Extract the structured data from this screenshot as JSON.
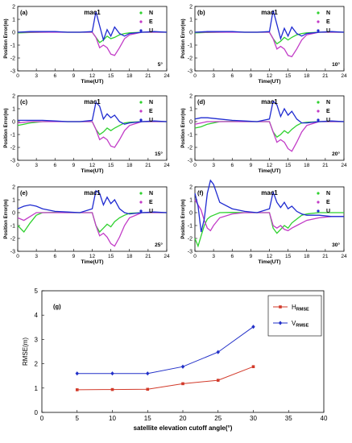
{
  "colors": {
    "N": "#2fd12f",
    "E": "#c23cc7",
    "U": "#1f2bd1",
    "H_RMSE": "#d23a2a",
    "V_RMSE": "#2230c8"
  },
  "chart_data": [
    {
      "type": "line",
      "panel_label": "(a)",
      "title": "mac1",
      "cutoff_label": "5°",
      "xlabel": "Time(UT)",
      "ylabel": "Position Error(m)",
      "xlim": [
        0,
        24
      ],
      "ylim": [
        -3,
        2
      ],
      "xticks": [
        0,
        3,
        6,
        9,
        12,
        15,
        18,
        21,
        24
      ],
      "yticks": [
        -3,
        -2,
        -1,
        0,
        1,
        2
      ],
      "legend": [
        "N",
        "E",
        "U"
      ],
      "series": [
        {
          "name": "N",
          "x": [
            0,
            2,
            4,
            6,
            8,
            10,
            12,
            12.6,
            13.2,
            13.8,
            14.4,
            15,
            15.6,
            16.4,
            17.2,
            18,
            20,
            22,
            24
          ],
          "y": [
            -0.05,
            -0.02,
            0,
            0.02,
            0,
            0,
            0,
            -0.4,
            -0.8,
            -0.6,
            -0.3,
            -0.5,
            -0.4,
            -0.2,
            -0.1,
            -0.05,
            0,
            0,
            0
          ]
        },
        {
          "name": "E",
          "x": [
            0,
            2,
            4,
            6,
            8,
            10,
            12,
            12.6,
            13.2,
            13.8,
            14.4,
            15,
            15.6,
            16.4,
            17.2,
            18,
            20,
            22,
            24
          ],
          "y": [
            0,
            0,
            0,
            0,
            0,
            0,
            0,
            -0.4,
            -1.2,
            -1.0,
            -1.2,
            -1.7,
            -1.8,
            -1.2,
            -0.5,
            -0.2,
            0,
            0,
            0
          ]
        },
        {
          "name": "U",
          "x": [
            0,
            2,
            4,
            6,
            8,
            10,
            12,
            12.6,
            13.2,
            13.8,
            14.4,
            15,
            15.6,
            16.4,
            17.2,
            18,
            20,
            22,
            24
          ],
          "y": [
            0,
            0.05,
            0.05,
            0.05,
            0,
            0,
            0.05,
            1.6,
            0.5,
            -0.6,
            0.2,
            -0.3,
            0.4,
            -0.1,
            -0.3,
            -0.1,
            0,
            0.05,
            0
          ]
        }
      ]
    },
    {
      "type": "line",
      "panel_label": "(b)",
      "title": "mac1",
      "cutoff_label": "10°",
      "xlabel": "Time(UT)",
      "ylabel": "Position Error(m)",
      "xlim": [
        0,
        24
      ],
      "ylim": [
        -3,
        2
      ],
      "xticks": [
        0,
        3,
        6,
        9,
        12,
        15,
        18,
        21,
        24
      ],
      "yticks": [
        -3,
        -2,
        -1,
        0,
        1,
        2
      ],
      "legend": [
        "N",
        "E",
        "U"
      ],
      "series": [
        {
          "name": "N",
          "x": [
            0,
            2,
            4,
            6,
            8,
            10,
            12,
            12.6,
            13.2,
            13.8,
            14.4,
            15,
            15.6,
            16.4,
            17.2,
            18,
            20,
            22,
            24
          ],
          "y": [
            -0.05,
            -0.02,
            0,
            0.02,
            0,
            0,
            0,
            -0.5,
            -0.9,
            -0.7,
            -0.4,
            -0.6,
            -0.4,
            -0.2,
            -0.1,
            -0.05,
            0,
            0,
            0
          ]
        },
        {
          "name": "E",
          "x": [
            0,
            2,
            4,
            6,
            8,
            10,
            12,
            12.6,
            13.2,
            13.8,
            14.4,
            15,
            15.6,
            16.4,
            17.2,
            18,
            20,
            22,
            24
          ],
          "y": [
            0,
            0,
            0,
            0,
            0,
            0,
            0,
            -0.5,
            -1.3,
            -1.1,
            -1.3,
            -1.8,
            -1.9,
            -1.3,
            -0.6,
            -0.2,
            0,
            0,
            0
          ]
        },
        {
          "name": "U",
          "x": [
            0,
            2,
            4,
            6,
            8,
            10,
            12,
            12.6,
            13.2,
            13.8,
            14.4,
            15,
            15.6,
            16.4,
            17.2,
            18,
            20,
            22,
            24
          ],
          "y": [
            0,
            0.05,
            0.05,
            0.05,
            0,
            0,
            0.05,
            1.7,
            0.6,
            -0.5,
            0.3,
            -0.3,
            0.4,
            -0.1,
            -0.3,
            -0.1,
            0,
            0.05,
            0
          ]
        }
      ]
    },
    {
      "type": "line",
      "panel_label": "(c)",
      "title": "mac1",
      "cutoff_label": "15°",
      "xlabel": "Time(UT)",
      "ylabel": "Position Error(m)",
      "xlim": [
        0,
        24
      ],
      "ylim": [
        -3,
        2
      ],
      "xticks": [
        0,
        3,
        6,
        9,
        12,
        15,
        18,
        21,
        24
      ],
      "yticks": [
        -3,
        -2,
        -1,
        0,
        1,
        2
      ],
      "legend": [
        "N",
        "E",
        "U"
      ],
      "series": [
        {
          "name": "N",
          "x": [
            0,
            1,
            2,
            4,
            6,
            8,
            10,
            12,
            12.6,
            13.2,
            13.8,
            14.4,
            15,
            15.6,
            16.4,
            17.2,
            18,
            20,
            22,
            24
          ],
          "y": [
            -0.3,
            -0.2,
            -0.1,
            0,
            0.02,
            0,
            0,
            0,
            -0.6,
            -1.0,
            -0.8,
            -0.5,
            -0.7,
            -0.5,
            -0.3,
            -0.1,
            -0.05,
            0,
            0,
            0
          ]
        },
        {
          "name": "E",
          "x": [
            0,
            1,
            2,
            4,
            6,
            8,
            10,
            12,
            12.6,
            13.2,
            13.8,
            14.4,
            15,
            15.6,
            16.4,
            17.2,
            18,
            20,
            22,
            24
          ],
          "y": [
            -0.1,
            -0.05,
            0,
            0,
            0,
            0,
            0,
            0,
            -0.6,
            -1.4,
            -1.2,
            -1.4,
            -1.9,
            -2.0,
            -1.4,
            -0.7,
            -0.3,
            0,
            0,
            0
          ]
        },
        {
          "name": "U",
          "x": [
            0,
            1,
            2,
            4,
            6,
            8,
            10,
            12,
            12.6,
            13.2,
            13.8,
            14.4,
            15,
            15.6,
            16.4,
            17.2,
            18,
            20,
            22,
            24
          ],
          "y": [
            0.1,
            0.1,
            0.1,
            0.1,
            0.05,
            0,
            0,
            0.1,
            1.5,
            1.2,
            0.2,
            0.6,
            0.3,
            0.5,
            0.0,
            -0.2,
            -0.1,
            0,
            0.05,
            0
          ]
        }
      ]
    },
    {
      "type": "line",
      "panel_label": "(d)",
      "title": "mac1",
      "cutoff_label": "20°",
      "xlabel": "Time(UT)",
      "ylabel": "Position Error(m)",
      "xlim": [
        0,
        24
      ],
      "ylim": [
        -3,
        2
      ],
      "xticks": [
        0,
        3,
        6,
        9,
        12,
        15,
        18,
        21,
        24
      ],
      "yticks": [
        -3,
        -2,
        -1,
        0,
        1,
        2
      ],
      "legend": [
        "N",
        "E",
        "U"
      ],
      "series": [
        {
          "name": "N",
          "x": [
            0,
            1,
            2,
            4,
            6,
            8,
            10,
            12,
            12.6,
            13.2,
            13.8,
            14.4,
            15,
            15.6,
            16.4,
            17.2,
            18,
            20,
            22,
            24
          ],
          "y": [
            -0.5,
            -0.4,
            -0.2,
            0,
            0.02,
            0,
            0,
            0,
            -0.8,
            -1.2,
            -1.0,
            -0.7,
            -0.9,
            -0.6,
            -0.3,
            -0.1,
            -0.05,
            0,
            0,
            0
          ]
        },
        {
          "name": "E",
          "x": [
            0,
            1,
            2,
            4,
            6,
            8,
            10,
            12,
            12.6,
            13.2,
            13.8,
            14.4,
            15,
            15.6,
            16.4,
            17.2,
            18,
            20,
            22,
            24
          ],
          "y": [
            -0.2,
            -0.1,
            0,
            0,
            0,
            0,
            0,
            0,
            -0.8,
            -1.6,
            -1.4,
            -1.6,
            -2.1,
            -2.3,
            -1.6,
            -0.8,
            -0.3,
            0,
            0,
            0
          ]
        },
        {
          "name": "U",
          "x": [
            0,
            1,
            2,
            4,
            6,
            8,
            10,
            12,
            12.6,
            13.2,
            13.8,
            14.4,
            15,
            15.6,
            16.4,
            17.2,
            18,
            20,
            22,
            24
          ],
          "y": [
            0.2,
            0.3,
            0.3,
            0.2,
            0.1,
            0.05,
            0,
            0.2,
            1.6,
            1.3,
            0.4,
            1.0,
            0.5,
            0.8,
            0.2,
            -0.1,
            -0.1,
            0,
            0.05,
            0
          ]
        }
      ]
    },
    {
      "type": "line",
      "panel_label": "(e)",
      "title": "mac1",
      "cutoff_label": "25°",
      "xlabel": "Time(UT)",
      "ylabel": "Position Error(m)",
      "xlim": [
        0,
        24
      ],
      "ylim": [
        -3,
        2
      ],
      "xticks": [
        0,
        3,
        6,
        9,
        12,
        15,
        18,
        21,
        24
      ],
      "yticks": [
        -3,
        -2,
        -1,
        0,
        1,
        2
      ],
      "legend": [
        "N",
        "E",
        "U"
      ],
      "series": [
        {
          "name": "N",
          "x": [
            0,
            1,
            2,
            3,
            4,
            6,
            8,
            10,
            12,
            12.6,
            13.2,
            13.8,
            14.4,
            15,
            15.6,
            16.4,
            17.2,
            18,
            20,
            22,
            24
          ],
          "y": [
            -1.0,
            -1.5,
            -0.8,
            -0.2,
            0,
            0.02,
            0,
            0,
            0,
            -1.0,
            -1.5,
            -1.2,
            -0.9,
            -1.1,
            -0.7,
            -0.4,
            -0.2,
            -0.05,
            0,
            0,
            0
          ]
        },
        {
          "name": "E",
          "x": [
            0,
            1,
            2,
            3,
            4,
            6,
            8,
            10,
            12,
            12.6,
            13.2,
            13.8,
            14.4,
            15,
            15.6,
            16.4,
            17.2,
            18,
            20,
            22,
            24
          ],
          "y": [
            -0.4,
            -0.6,
            -0.3,
            0,
            0,
            0,
            0,
            0,
            0,
            -1.0,
            -1.8,
            -1.6,
            -1.9,
            -2.4,
            -2.6,
            -1.9,
            -1.0,
            -0.4,
            0,
            0,
            0
          ]
        },
        {
          "name": "U",
          "x": [
            0,
            1,
            2,
            3,
            4,
            6,
            8,
            10,
            12,
            12.6,
            13.2,
            13.8,
            14.4,
            15,
            15.6,
            16.4,
            17.2,
            18,
            20,
            22,
            24
          ],
          "y": [
            0.3,
            0.5,
            0.6,
            0.5,
            0.3,
            0.1,
            0.05,
            0,
            0.3,
            1.7,
            1.5,
            0.6,
            1.2,
            0.7,
            1.0,
            0.3,
            0,
            -0.1,
            0,
            0.05,
            0
          ]
        }
      ]
    },
    {
      "type": "line",
      "panel_label": "(f)",
      "title": "mac1",
      "cutoff_label": "30°",
      "xlabel": "Time(UT)",
      "ylabel": "Position Error(m)",
      "xlim": [
        0,
        24
      ],
      "ylim": [
        -3,
        2
      ],
      "xticks": [
        0,
        3,
        6,
        9,
        12,
        15,
        18,
        21,
        24
      ],
      "yticks": [
        -3,
        -2,
        -1,
        0,
        1,
        2
      ],
      "legend": [
        "N",
        "E",
        "U"
      ],
      "series": [
        {
          "name": "N",
          "x": [
            0,
            0.5,
            1,
            1.5,
            2,
            2.5,
            3,
            4,
            6,
            8,
            10,
            12,
            12.6,
            13.2,
            13.8,
            14.4,
            15,
            15.6,
            16.4,
            17.2,
            18,
            20,
            22,
            24
          ],
          "y": [
            -2.0,
            -2.6,
            -1.8,
            -1.0,
            -0.5,
            -0.3,
            -0.2,
            0,
            0.02,
            0,
            0,
            0,
            -1.2,
            -1.6,
            -1.3,
            -1.0,
            -1.2,
            -0.8,
            -0.5,
            -0.2,
            -0.1,
            0,
            0,
            0
          ]
        },
        {
          "name": "E",
          "x": [
            0,
            0.5,
            1,
            1.5,
            2,
            2.5,
            3,
            4,
            6,
            8,
            10,
            12,
            12.6,
            13.2,
            13.8,
            14.4,
            15,
            15.6,
            16.4,
            17.2,
            18,
            20,
            22,
            24
          ],
          "y": [
            1.0,
            0.6,
            0.2,
            -0.6,
            -1.2,
            -1.4,
            -1.0,
            -0.4,
            -0.1,
            0,
            0,
            0,
            -1.0,
            -1.2,
            -1.0,
            -1.3,
            -1.4,
            -1.2,
            -1.0,
            -0.8,
            -0.6,
            -0.4,
            -0.3,
            -0.3
          ]
        },
        {
          "name": "U",
          "x": [
            0,
            0.5,
            1,
            1.5,
            2,
            2.5,
            3,
            4,
            6,
            8,
            10,
            12,
            12.6,
            13.2,
            13.8,
            14.4,
            15,
            15.6,
            16.4,
            17.2,
            18,
            20,
            22,
            24
          ],
          "y": [
            1.5,
            0.5,
            -1.5,
            -0.5,
            1.5,
            2.5,
            2.2,
            0.8,
            0.3,
            0.1,
            0,
            0.3,
            1.6,
            0.8,
            0.4,
            0.8,
            0.3,
            0.5,
            0.1,
            -0.1,
            -0.2,
            -0.2,
            -0.3,
            -0.3
          ]
        }
      ]
    },
    {
      "type": "line",
      "panel_label": "(g)",
      "xlabel": "satellite elevation cutoff angle(°)",
      "ylabel": "RMSE(m)",
      "xlim": [
        0,
        40
      ],
      "ylim": [
        0,
        5
      ],
      "xticks": [
        0,
        5,
        10,
        15,
        20,
        25,
        30,
        35,
        40
      ],
      "yticks": [
        0,
        1,
        2,
        3,
        4,
        5
      ],
      "legend_placement": "top-right",
      "categories": [
        5,
        10,
        15,
        20,
        25,
        30
      ],
      "series": [
        {
          "name": "H",
          "name_sub": "RMSE",
          "values": [
            0.93,
            0.94,
            0.95,
            1.18,
            1.32,
            1.88
          ]
        },
        {
          "name": "V",
          "name_sub": "RMSE",
          "values": [
            1.6,
            1.6,
            1.6,
            1.88,
            2.48,
            3.52
          ]
        }
      ]
    }
  ]
}
